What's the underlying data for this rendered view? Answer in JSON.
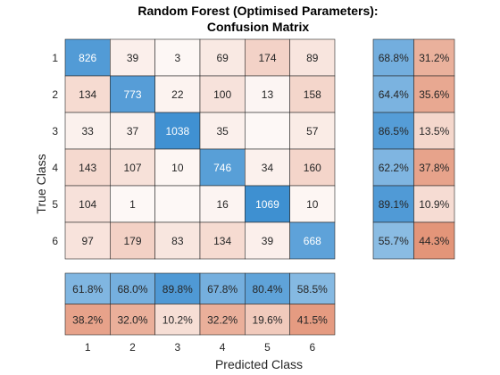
{
  "chart_data": {
    "type": "heatmap",
    "title": "Random Forest (Optimised Parameters):",
    "subtitle": "Confusion Matrix",
    "xlabel": "Predicted Class",
    "ylabel": "True Class",
    "classes": [
      "1",
      "2",
      "3",
      "4",
      "5",
      "6"
    ],
    "matrix": [
      [
        826,
        39,
        3,
        69,
        174,
        89
      ],
      [
        134,
        773,
        22,
        100,
        13,
        158
      ],
      [
        33,
        37,
        1038,
        35,
        null,
        57
      ],
      [
        143,
        107,
        10,
        746,
        34,
        160
      ],
      [
        104,
        1,
        null,
        16,
        1069,
        10
      ],
      [
        97,
        179,
        83,
        134,
        39,
        668
      ]
    ],
    "row_summary": [
      [
        "68.8%",
        "31.2%"
      ],
      [
        "64.4%",
        "35.6%"
      ],
      [
        "86.5%",
        "13.5%"
      ],
      [
        "62.2%",
        "37.8%"
      ],
      [
        "89.1%",
        "10.9%"
      ],
      [
        "55.7%",
        "44.3%"
      ]
    ],
    "column_summary": {
      "correct": [
        "61.8%",
        "68.0%",
        "89.8%",
        "67.8%",
        "80.4%",
        "58.5%"
      ],
      "incorrect": [
        "38.2%",
        "32.0%",
        "10.2%",
        "32.2%",
        "19.6%",
        "41.5%"
      ]
    },
    "colors": {
      "correct": "#3d8fd1",
      "incorrect": "#e0896a",
      "text_dark": "#262626",
      "text_light": "#ffffff",
      "grid": "#262626"
    }
  }
}
